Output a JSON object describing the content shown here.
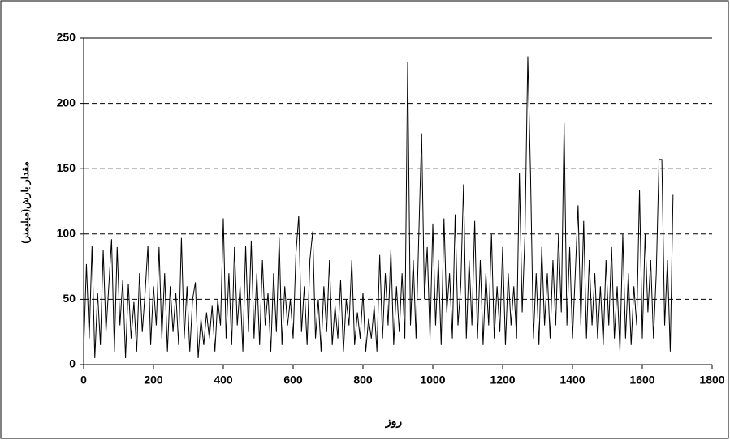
{
  "chart_data": {
    "type": "line",
    "x_label": "روز",
    "y_label": "مقدار بارش(میلیمتر)",
    "xlim": [
      0,
      1800
    ],
    "xticks": [
      0,
      200,
      400,
      600,
      800,
      1000,
      1200,
      1400,
      1600,
      1800
    ],
    "ylim": [
      0,
      250
    ],
    "yticks": [
      0,
      50,
      100,
      150,
      200,
      250
    ],
    "grid": true,
    "x": [
      0,
      8,
      16,
      24,
      32,
      40,
      48,
      56,
      64,
      72,
      80,
      88,
      96,
      104,
      112,
      120,
      128,
      136,
      144,
      152,
      160,
      168,
      176,
      184,
      192,
      200,
      208,
      216,
      224,
      232,
      240,
      248,
      256,
      264,
      272,
      280,
      288,
      296,
      304,
      312,
      320,
      328,
      336,
      344,
      352,
      360,
      368,
      376,
      384,
      392,
      400,
      408,
      416,
      424,
      432,
      440,
      448,
      456,
      464,
      472,
      480,
      488,
      496,
      504,
      512,
      520,
      528,
      536,
      544,
      552,
      560,
      568,
      576,
      584,
      592,
      600,
      608,
      616,
      624,
      632,
      640,
      648,
      656,
      664,
      672,
      680,
      688,
      696,
      704,
      712,
      720,
      728,
      736,
      744,
      752,
      760,
      768,
      776,
      784,
      792,
      800,
      808,
      816,
      824,
      832,
      840,
      848,
      856,
      864,
      872,
      880,
      888,
      896,
      904,
      912,
      920,
      928,
      936,
      944,
      952,
      960,
      968,
      976,
      984,
      992,
      1000,
      1008,
      1016,
      1024,
      1032,
      1040,
      1048,
      1056,
      1064,
      1072,
      1080,
      1088,
      1096,
      1104,
      1112,
      1120,
      1128,
      1136,
      1144,
      1152,
      1160,
      1168,
      1176,
      1184,
      1192,
      1200,
      1208,
      1216,
      1224,
      1232,
      1240,
      1248,
      1256,
      1264,
      1272,
      1280,
      1288,
      1296,
      1304,
      1312,
      1320,
      1328,
      1336,
      1344,
      1352,
      1360,
      1368,
      1376,
      1384,
      1392,
      1400,
      1408,
      1416,
      1424,
      1432,
      1440,
      1448,
      1456,
      1464,
      1472,
      1480,
      1488,
      1496,
      1504,
      1512,
      1520,
      1528,
      1536,
      1544,
      1552,
      1560,
      1568,
      1576,
      1584,
      1592,
      1600,
      1608,
      1616,
      1624,
      1632,
      1640,
      1648,
      1656,
      1664,
      1672,
      1680,
      1688
    ],
    "series": [
      {
        "color": "#000000",
        "values": [
          10,
          77,
          20,
          91,
          5,
          55,
          15,
          88,
          25,
          60,
          96,
          10,
          90,
          30,
          65,
          5,
          62,
          20,
          48,
          10,
          70,
          25,
          55,
          91,
          15,
          60,
          30,
          90,
          20,
          70,
          10,
          60,
          25,
          55,
          15,
          97,
          20,
          60,
          10,
          50,
          63,
          5,
          35,
          15,
          40,
          20,
          45,
          10,
          50,
          30,
          112,
          20,
          70,
          15,
          90,
          30,
          60,
          10,
          91,
          25,
          95,
          20,
          70,
          15,
          80,
          30,
          55,
          10,
          70,
          25,
          97,
          15,
          60,
          30,
          50,
          20,
          85,
          114,
          25,
          60,
          15,
          80,
          102,
          20,
          50,
          10,
          60,
          25,
          80,
          15,
          45,
          20,
          65,
          10,
          50,
          30,
          80,
          15,
          40,
          20,
          55,
          10,
          35,
          20,
          45,
          10,
          84,
          20,
          70,
          30,
          88,
          15,
          60,
          25,
          70,
          20,
          232,
          30,
          80,
          20,
          100,
          177,
          50,
          90,
          20,
          108,
          30,
          80,
          15,
          112,
          40,
          70,
          20,
          115,
          30,
          60,
          138,
          20,
          80,
          30,
          110,
          20,
          80,
          15,
          70,
          30,
          100,
          20,
          60,
          25,
          90,
          15,
          70,
          30,
          60,
          20,
          147,
          40,
          100,
          236,
          144,
          20,
          70,
          15,
          90,
          30,
          70,
          20,
          80,
          30,
          100,
          40,
          185,
          30,
          90,
          20,
          70,
          122,
          30,
          110,
          20,
          80,
          30,
          70,
          20,
          60,
          15,
          80,
          30,
          90,
          20,
          60,
          10,
          100,
          20,
          70,
          15,
          60,
          30,
          134,
          20,
          100,
          40,
          80,
          20,
          70,
          157,
          157,
          30,
          80,
          10,
          130
        ]
      }
    ]
  }
}
